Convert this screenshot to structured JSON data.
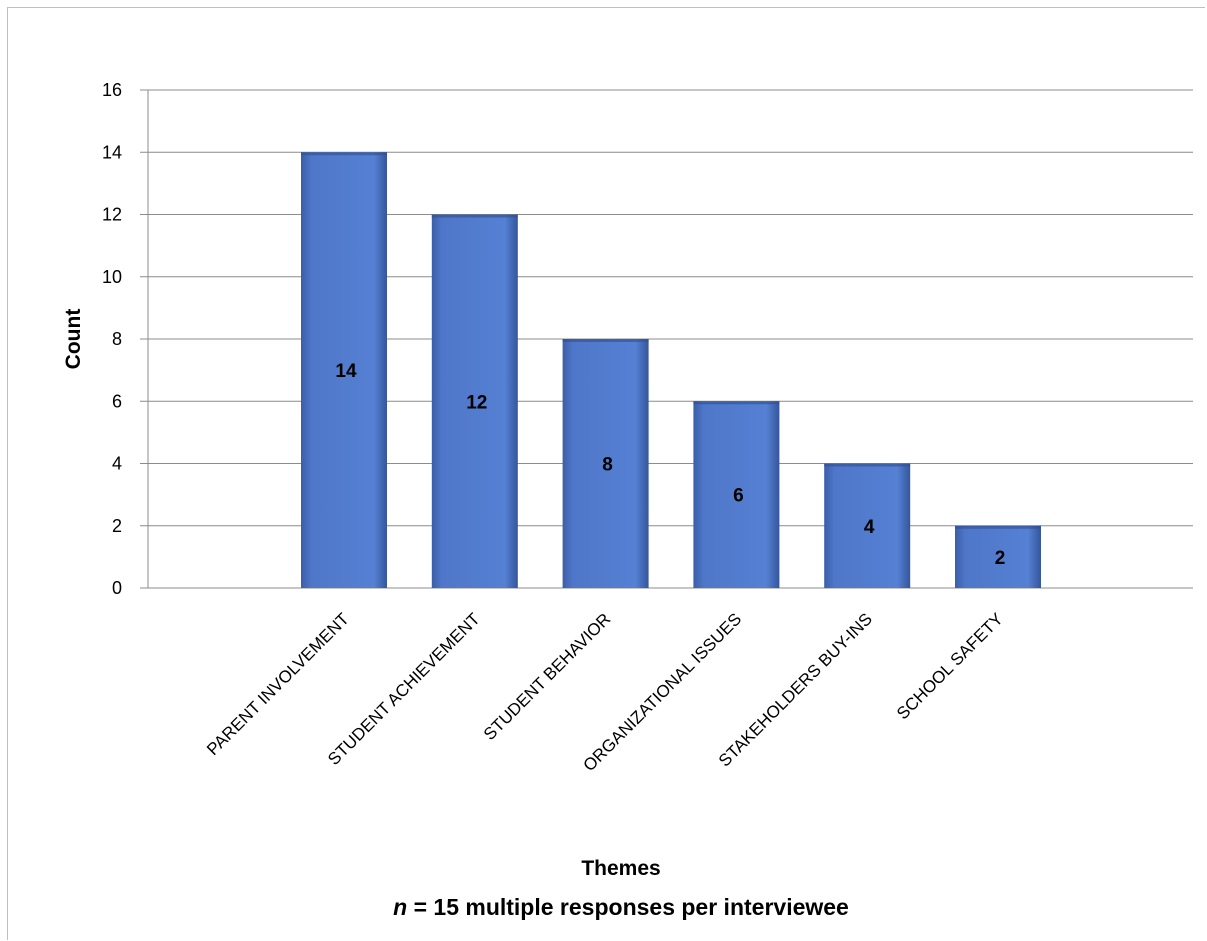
{
  "chart_data": {
    "type": "bar",
    "categories": [
      "PARENT INVOLVEMENT",
      "STUDENT ACHIEVEMENT",
      "STUDENT BEHAVIOR",
      "ORGANIZATIONAL ISSUES",
      "STAKEHOLDERS BUY-INS",
      "SCHOOL SAFETY"
    ],
    "values": [
      14,
      12,
      8,
      6,
      4,
      2
    ],
    "data_labels": [
      "14",
      "12",
      "8",
      "6",
      "4",
      "2"
    ],
    "yticks": [
      "0",
      "2",
      "4",
      "6",
      "8",
      "10",
      "12",
      "14",
      "16"
    ],
    "ylim": [
      0,
      16
    ],
    "xlabel": "Themes",
    "ylabel": "Count",
    "note_italic": "n",
    "note_rest": " = 15 multiple responses per interviewee",
    "grid": true,
    "legend": "none",
    "bar_color": "#4F77C9"
  }
}
